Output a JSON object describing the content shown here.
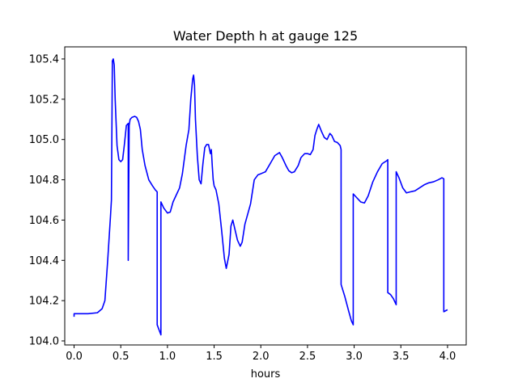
{
  "chart_data": {
    "type": "line",
    "title": "Water Depth h at gauge 125",
    "xlabel": "hours",
    "ylabel": "",
    "xlim": [
      -0.1,
      4.2
    ],
    "ylim": [
      103.98,
      105.46
    ],
    "x_ticks": [
      0.0,
      0.5,
      1.0,
      1.5,
      2.0,
      2.5,
      3.0,
      3.5,
      4.0
    ],
    "x_tick_labels": [
      "0.0",
      "0.5",
      "1.0",
      "1.5",
      "2.0",
      "2.5",
      "3.0",
      "3.5",
      "4.0"
    ],
    "y_ticks": [
      104.0,
      104.2,
      104.4,
      104.6,
      104.8,
      105.0,
      105.2,
      105.4
    ],
    "y_tick_labels": [
      "104.0",
      "104.2",
      "104.4",
      "104.6",
      "104.8",
      "105.0",
      "105.2",
      "105.4"
    ],
    "grid": false,
    "series": [
      {
        "name": "",
        "color": "#0000ff",
        "x": [
          0.0,
          0.0,
          0.05,
          0.15,
          0.25,
          0.3,
          0.33,
          0.36,
          0.39,
          0.4,
          0.41,
          0.42,
          0.43,
          0.44,
          0.46,
          0.48,
          0.5,
          0.52,
          0.54,
          0.56,
          0.58,
          0.58,
          0.59,
          0.6,
          0.62,
          0.65,
          0.67,
          0.69,
          0.71,
          0.73,
          0.76,
          0.8,
          0.84,
          0.87,
          0.89,
          0.89,
          0.93,
          0.93,
          0.96,
          1.0,
          1.03,
          1.06,
          1.1,
          1.13,
          1.16,
          1.2,
          1.23,
          1.25,
          1.27,
          1.28,
          1.29,
          1.3,
          1.32,
          1.34,
          1.36,
          1.38,
          1.4,
          1.42,
          1.44,
          1.46,
          1.47,
          1.48,
          1.49,
          1.5,
          1.52,
          1.55,
          1.58,
          1.61,
          1.63,
          1.66,
          1.68,
          1.7,
          1.72,
          1.75,
          1.78,
          1.8,
          1.83,
          1.86,
          1.89,
          1.91,
          1.93,
          1.97,
          2.0,
          2.05,
          2.1,
          2.15,
          2.2,
          2.23,
          2.27,
          2.3,
          2.33,
          2.36,
          2.4,
          2.43,
          2.47,
          2.5,
          2.53,
          2.56,
          2.58,
          2.6,
          2.62,
          2.65,
          2.68,
          2.71,
          2.74,
          2.76,
          2.79,
          2.82,
          2.85,
          2.86,
          2.86,
          2.9,
          2.94,
          2.97,
          2.99,
          2.99,
          3.03,
          3.07,
          3.11,
          3.15,
          3.2,
          3.25,
          3.3,
          3.35,
          3.36,
          3.36,
          3.39,
          3.42,
          3.45,
          3.45,
          3.48,
          3.52,
          3.56,
          3.6,
          3.65,
          3.7,
          3.75,
          3.8,
          3.85,
          3.9,
          3.94,
          3.96,
          3.96,
          3.98,
          4.0
        ],
        "y": [
          104.12,
          104.135,
          104.135,
          104.135,
          104.14,
          104.16,
          104.2,
          104.4,
          104.62,
          104.7,
          105.39,
          105.4,
          105.37,
          105.2,
          104.97,
          104.9,
          104.89,
          104.9,
          104.98,
          105.07,
          105.08,
          104.4,
          105.07,
          105.1,
          105.11,
          105.115,
          105.11,
          105.09,
          105.05,
          104.95,
          104.87,
          104.8,
          104.77,
          104.75,
          104.74,
          104.08,
          104.03,
          104.69,
          104.66,
          104.635,
          104.64,
          104.69,
          104.73,
          104.76,
          104.83,
          104.97,
          105.05,
          105.2,
          105.3,
          105.32,
          105.27,
          105.1,
          104.92,
          104.8,
          104.78,
          104.88,
          104.96,
          104.975,
          104.975,
          104.93,
          104.95,
          104.87,
          104.8,
          104.77,
          104.75,
          104.68,
          104.55,
          104.41,
          104.36,
          104.43,
          104.57,
          104.6,
          104.56,
          104.5,
          104.47,
          104.49,
          104.58,
          104.63,
          104.68,
          104.74,
          104.8,
          104.825,
          104.83,
          104.84,
          104.88,
          104.92,
          104.935,
          104.91,
          104.87,
          104.845,
          104.835,
          104.84,
          104.87,
          104.91,
          104.93,
          104.93,
          104.925,
          104.95,
          105.02,
          105.05,
          105.075,
          105.04,
          105.01,
          105.0,
          105.03,
          105.02,
          104.99,
          104.985,
          104.97,
          104.95,
          104.28,
          104.22,
          104.15,
          104.1,
          104.08,
          104.73,
          104.71,
          104.69,
          104.685,
          104.72,
          104.79,
          104.84,
          104.88,
          104.895,
          104.9,
          104.24,
          104.23,
          104.21,
          104.18,
          104.84,
          104.81,
          104.76,
          104.735,
          104.74,
          104.745,
          104.76,
          104.775,
          104.785,
          104.79,
          104.8,
          104.81,
          104.805,
          104.145,
          104.15,
          104.155
        ]
      }
    ]
  }
}
